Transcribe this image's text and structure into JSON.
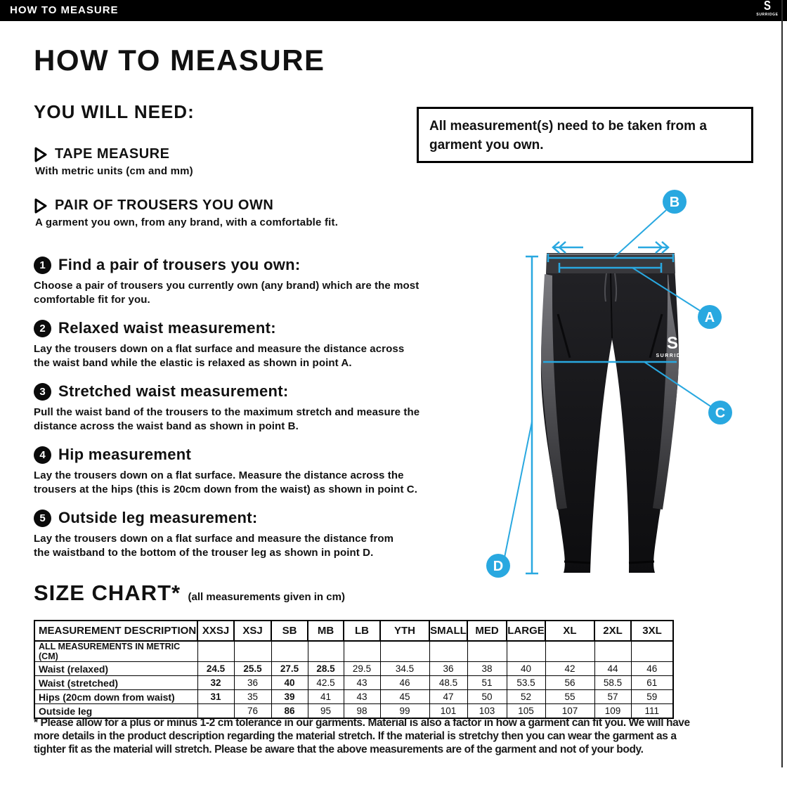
{
  "topbar": {
    "title": "HOW TO MEASURE",
    "brand": "SURRIDGE",
    "brand_initial": "S"
  },
  "page": {
    "title": "HOW TO MEASURE",
    "you_will_need": {
      "heading": "YOU WILL NEED:",
      "items": [
        {
          "label": "TAPE MEASURE",
          "desc": "With metric units (cm and mm)"
        },
        {
          "label": "PAIR OF TROUSERS YOU OWN",
          "desc": "A garment you own, from any brand, with a comfortable fit."
        }
      ]
    },
    "notice": "All measurement(s) need to be taken from a\ngarment you own.",
    "steps": [
      {
        "num": "1",
        "title": "Find a pair of trousers you own:",
        "body": "Choose a pair of trousers you currently own (any brand) which are the most\ncomfortable fit for you."
      },
      {
        "num": "2",
        "title": "Relaxed waist measurement:",
        "body": "Lay the trousers down on a flat surface and measure the distance across\nthe waist band while the elastic is relaxed as shown in point A."
      },
      {
        "num": "3",
        "title": "Stretched waist measurement:",
        "body": "Pull the waist band of the trousers to the maximum stretch and measure the\ndistance across the waist band as shown in point B."
      },
      {
        "num": "4",
        "title": "Hip measurement",
        "body": "Lay the trousers down on a flat surface. Measure the distance across the\ntrousers at the hips (this is 20cm down from the waist)  as shown in point C."
      },
      {
        "num": "5",
        "title": "Outside leg measurement:",
        "body": "Lay the trousers down on a flat surface and measure the distance from\nthe waistband to the bottom of the trouser  leg as shown in point D."
      }
    ],
    "figure": {
      "labels": {
        "a": "A",
        "b": "B",
        "c": "C",
        "d": "D"
      },
      "brand": "SURRIDGE",
      "brand_initial": "S",
      "accent_color": "#29a8e0"
    },
    "size_chart": {
      "heading": "SIZE CHART*",
      "subheading": "(all measurements given in cm)",
      "columns": [
        "MEASUREMENT DESCRIPTION",
        "XXSJ",
        "XSJ",
        "SB",
        "MB",
        "LB",
        "YTH",
        "SMALL",
        "MED",
        "LARGE",
        "XL",
        "2XL",
        "3XL"
      ],
      "metric_row": "ALL MEASUREMENTS IN METRIC (CM)",
      "rows": [
        {
          "label": "Waist (relaxed)",
          "values": [
            "24.5",
            "25.5",
            "27.5",
            "28.5",
            "29.5",
            "34.5",
            "36",
            "38",
            "40",
            "42",
            "44",
            "46"
          ],
          "bold": [
            0,
            1,
            2,
            3
          ]
        },
        {
          "label": "Waist (stretched)",
          "values": [
            "32",
            "36",
            "40",
            "42.5",
            "43",
            "46",
            "48.5",
            "51",
            "53.5",
            "56",
            "58.5",
            "61"
          ],
          "bold": [
            0,
            2
          ]
        },
        {
          "label": "Hips (20cm down from waist)",
          "values": [
            "31",
            "35",
            "39",
            "41",
            "43",
            "45",
            "47",
            "50",
            "52",
            "55",
            "57",
            "59"
          ],
          "bold": [
            0,
            2
          ]
        },
        {
          "label": "Outside leg",
          "values": [
            "",
            "76",
            "86",
            "95",
            "98",
            "99",
            "101",
            "103",
            "105",
            "107",
            "109",
            "111"
          ],
          "bold": [
            2
          ]
        }
      ]
    },
    "footnote": "* Please allow for a plus or minus 1-2 cm tolerance in our garments. Material is also a factor in how a garment can fit you. We will have\nmore details in the product description regarding the material stretch.  If the material is stretchy then you can wear the garment as a\ntighter fit as the material will stretch.  Please be aware that the above measurements are of the garment and not of your body."
  }
}
